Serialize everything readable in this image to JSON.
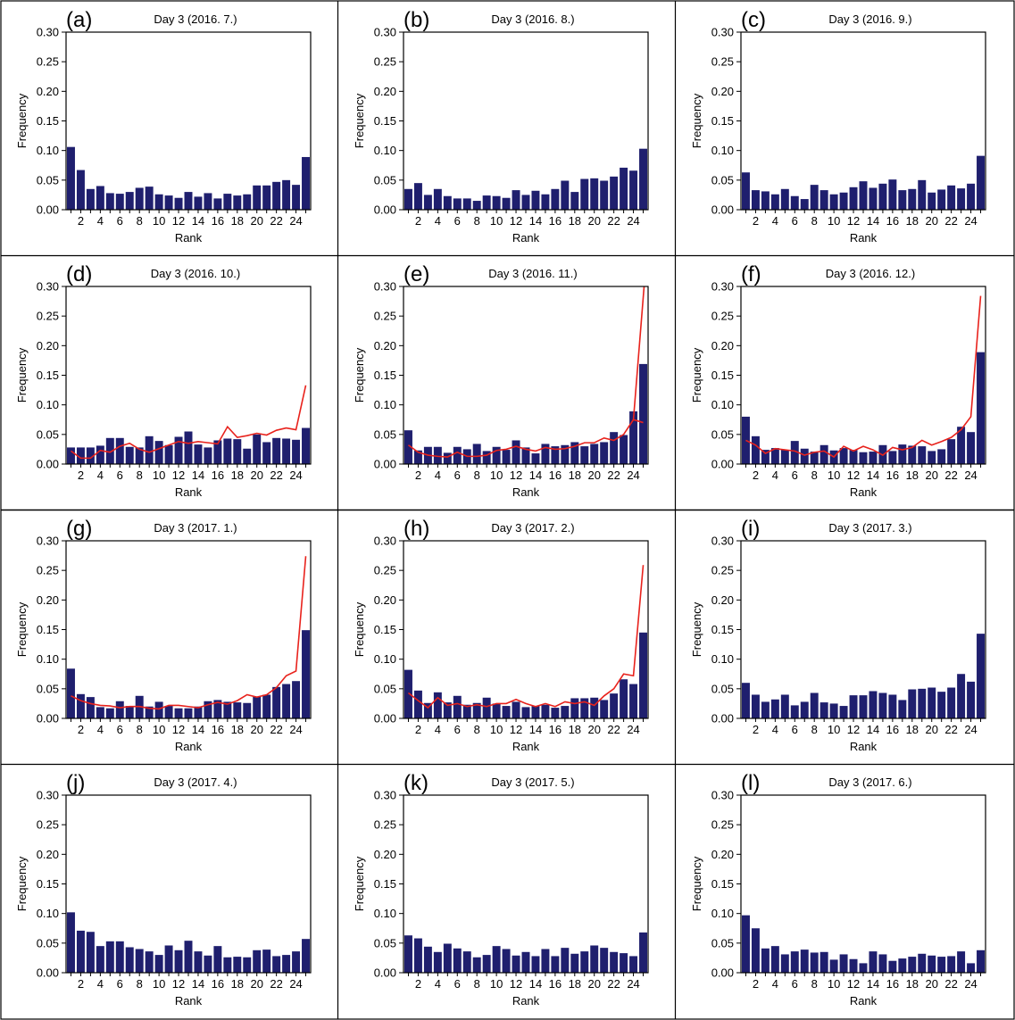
{
  "style": {
    "bar_color": "#1f1f6e",
    "line_color": "#e8221c",
    "frame_color": "#000000"
  },
  "axes": {
    "ylabel": "Frequency",
    "xlabel": "Rank",
    "ylim": [
      0,
      0.3
    ],
    "yticks": [
      "0.00",
      "0.05",
      "0.10",
      "0.15",
      "0.20",
      "0.25",
      "0.30"
    ],
    "xticks": [
      "2",
      "4",
      "6",
      "8",
      "10",
      "12",
      "14",
      "16",
      "18",
      "20",
      "22",
      "24"
    ]
  },
  "chart_data": [
    {
      "type": "bar",
      "letter": "(a)",
      "title": "Day 3 (2016. 7.)",
      "x": [
        1,
        2,
        3,
        4,
        5,
        6,
        7,
        8,
        9,
        10,
        11,
        12,
        13,
        14,
        15,
        16,
        17,
        18,
        19,
        20,
        21,
        22,
        23,
        24,
        25
      ],
      "values": [
        0.106,
        0.067,
        0.035,
        0.04,
        0.028,
        0.027,
        0.03,
        0.037,
        0.039,
        0.026,
        0.024,
        0.02,
        0.03,
        0.022,
        0.028,
        0.019,
        0.027,
        0.024,
        0.026,
        0.041,
        0.041,
        0.047,
        0.05,
        0.042,
        0.089
      ],
      "line": null,
      "xlabel": "Rank",
      "ylabel": "Frequency",
      "ylim": [
        0,
        0.3
      ]
    },
    {
      "type": "bar",
      "letter": "(b)",
      "title": "Day 3 (2016. 8.)",
      "x": [
        1,
        2,
        3,
        4,
        5,
        6,
        7,
        8,
        9,
        10,
        11,
        12,
        13,
        14,
        15,
        16,
        17,
        18,
        19,
        20,
        21,
        22,
        23,
        24,
        25
      ],
      "values": [
        0.035,
        0.045,
        0.025,
        0.035,
        0.023,
        0.019,
        0.019,
        0.015,
        0.024,
        0.023,
        0.02,
        0.033,
        0.025,
        0.032,
        0.026,
        0.035,
        0.049,
        0.03,
        0.052,
        0.053,
        0.049,
        0.056,
        0.071,
        0.066,
        0.103
      ],
      "line": null,
      "xlabel": "Rank",
      "ylabel": "Frequency",
      "ylim": [
        0,
        0.3
      ]
    },
    {
      "type": "bar",
      "letter": "(c)",
      "title": "Day 3 (2016. 9.)",
      "x": [
        1,
        2,
        3,
        4,
        5,
        6,
        7,
        8,
        9,
        10,
        11,
        12,
        13,
        14,
        15,
        16,
        17,
        18,
        19,
        20,
        21,
        22,
        23,
        24,
        25
      ],
      "values": [
        0.063,
        0.033,
        0.031,
        0.026,
        0.035,
        0.023,
        0.018,
        0.042,
        0.033,
        0.026,
        0.029,
        0.038,
        0.048,
        0.037,
        0.044,
        0.051,
        0.033,
        0.035,
        0.05,
        0.029,
        0.034,
        0.041,
        0.036,
        0.044,
        0.091
      ],
      "line": null,
      "xlabel": "Rank",
      "ylabel": "Frequency",
      "ylim": [
        0,
        0.3
      ]
    },
    {
      "type": "bar",
      "letter": "(d)",
      "title": "Day 3 (2016. 10.)",
      "x": [
        1,
        2,
        3,
        4,
        5,
        6,
        7,
        8,
        9,
        10,
        11,
        12,
        13,
        14,
        15,
        16,
        17,
        18,
        19,
        20,
        21,
        22,
        23,
        24,
        25
      ],
      "values": [
        0.028,
        0.028,
        0.028,
        0.031,
        0.044,
        0.044,
        0.029,
        0.028,
        0.047,
        0.039,
        0.032,
        0.046,
        0.055,
        0.033,
        0.028,
        0.04,
        0.043,
        0.042,
        0.026,
        0.05,
        0.037,
        0.044,
        0.043,
        0.041,
        0.061
      ],
      "line": [
        0.022,
        0.01,
        0.01,
        0.023,
        0.02,
        0.03,
        0.035,
        0.025,
        0.02,
        0.026,
        0.032,
        0.038,
        0.035,
        0.038,
        0.036,
        0.034,
        0.063,
        0.045,
        0.048,
        0.052,
        0.049,
        0.057,
        0.061,
        0.058,
        0.133
      ],
      "xlabel": "Rank",
      "ylabel": "Frequency",
      "ylim": [
        0,
        0.3
      ]
    },
    {
      "type": "bar",
      "letter": "(e)",
      "title": "Day 3 (2016. 11.)",
      "x": [
        1,
        2,
        3,
        4,
        5,
        6,
        7,
        8,
        9,
        10,
        11,
        12,
        13,
        14,
        15,
        16,
        17,
        18,
        19,
        20,
        21,
        22,
        23,
        24,
        25
      ],
      "values": [
        0.057,
        0.023,
        0.029,
        0.029,
        0.019,
        0.029,
        0.025,
        0.034,
        0.022,
        0.029,
        0.024,
        0.04,
        0.028,
        0.018,
        0.034,
        0.03,
        0.032,
        0.037,
        0.03,
        0.034,
        0.037,
        0.054,
        0.049,
        0.089,
        0.169
      ],
      "line": [
        0.032,
        0.02,
        0.015,
        0.013,
        0.012,
        0.02,
        0.013,
        0.013,
        0.015,
        0.023,
        0.025,
        0.03,
        0.025,
        0.022,
        0.028,
        0.025,
        0.026,
        0.03,
        0.036,
        0.036,
        0.044,
        0.04,
        0.05,
        0.075,
        0.07
      ],
      "line_tail": [
        0.075,
        0.3
      ],
      "xlabel": "Rank",
      "ylabel": "Frequency",
      "ylim": [
        0,
        0.3
      ]
    },
    {
      "type": "bar",
      "letter": "(f)",
      "title": "Day 3 (2016. 12.)",
      "x": [
        1,
        2,
        3,
        4,
        5,
        6,
        7,
        8,
        9,
        10,
        11,
        12,
        13,
        14,
        15,
        16,
        17,
        18,
        19,
        20,
        21,
        22,
        23,
        24,
        25
      ],
      "values": [
        0.08,
        0.047,
        0.024,
        0.027,
        0.024,
        0.039,
        0.026,
        0.021,
        0.032,
        0.023,
        0.027,
        0.024,
        0.02,
        0.021,
        0.032,
        0.022,
        0.033,
        0.031,
        0.03,
        0.022,
        0.025,
        0.042,
        0.063,
        0.054,
        0.189
      ],
      "line": [
        0.04,
        0.032,
        0.018,
        0.026,
        0.024,
        0.022,
        0.015,
        0.02,
        0.022,
        0.012,
        0.03,
        0.022,
        0.03,
        0.024,
        0.015,
        0.028,
        0.024,
        0.028,
        0.04,
        0.032,
        0.038,
        0.045,
        0.058,
        0.08,
        0.284
      ],
      "xlabel": "Rank",
      "ylabel": "Frequency",
      "ylim": [
        0,
        0.3
      ]
    },
    {
      "type": "bar",
      "letter": "(g)",
      "title": "Day 3 (2017. 1.)",
      "x": [
        1,
        2,
        3,
        4,
        5,
        6,
        7,
        8,
        9,
        10,
        11,
        12,
        13,
        14,
        15,
        16,
        17,
        18,
        19,
        20,
        21,
        22,
        23,
        24,
        25
      ],
      "values": [
        0.084,
        0.041,
        0.036,
        0.019,
        0.017,
        0.029,
        0.021,
        0.038,
        0.02,
        0.028,
        0.021,
        0.017,
        0.017,
        0.02,
        0.029,
        0.031,
        0.028,
        0.027,
        0.026,
        0.037,
        0.04,
        0.053,
        0.058,
        0.063,
        0.149
      ],
      "line": [
        0.038,
        0.03,
        0.025,
        0.022,
        0.021,
        0.018,
        0.02,
        0.02,
        0.017,
        0.016,
        0.022,
        0.022,
        0.02,
        0.018,
        0.023,
        0.027,
        0.024,
        0.03,
        0.04,
        0.036,
        0.04,
        0.052,
        0.072,
        0.08,
        0.274
      ],
      "xlabel": "Rank",
      "ylabel": "Frequency",
      "ylim": [
        0,
        0.3
      ]
    },
    {
      "type": "bar",
      "letter": "(h)",
      "title": "Day 3 (2017. 2.)",
      "x": [
        1,
        2,
        3,
        4,
        5,
        6,
        7,
        8,
        9,
        10,
        11,
        12,
        13,
        14,
        15,
        16,
        17,
        18,
        19,
        20,
        21,
        22,
        23,
        24,
        25
      ],
      "values": [
        0.082,
        0.047,
        0.026,
        0.044,
        0.027,
        0.038,
        0.023,
        0.026,
        0.035,
        0.025,
        0.021,
        0.028,
        0.019,
        0.021,
        0.023,
        0.018,
        0.021,
        0.034,
        0.034,
        0.035,
        0.031,
        0.042,
        0.066,
        0.058,
        0.145
      ],
      "line": [
        0.043,
        0.03,
        0.018,
        0.035,
        0.022,
        0.025,
        0.02,
        0.023,
        0.02,
        0.025,
        0.025,
        0.032,
        0.025,
        0.02,
        0.025,
        0.02,
        0.028,
        0.025,
        0.028,
        0.022,
        0.038,
        0.05,
        0.075,
        0.072,
        0.259
      ],
      "xlabel": "Rank",
      "ylabel": "Frequency",
      "ylim": [
        0,
        0.3
      ]
    },
    {
      "type": "bar",
      "letter": "(i)",
      "title": "Day 3 (2017. 3.)",
      "x": [
        1,
        2,
        3,
        4,
        5,
        6,
        7,
        8,
        9,
        10,
        11,
        12,
        13,
        14,
        15,
        16,
        17,
        18,
        19,
        20,
        21,
        22,
        23,
        24,
        25
      ],
      "values": [
        0.06,
        0.04,
        0.028,
        0.032,
        0.04,
        0.022,
        0.028,
        0.043,
        0.027,
        0.025,
        0.021,
        0.039,
        0.039,
        0.046,
        0.043,
        0.04,
        0.031,
        0.049,
        0.05,
        0.052,
        0.045,
        0.052,
        0.075,
        0.062,
        0.143
      ],
      "line": null,
      "xlabel": "Rank",
      "ylabel": "Frequency",
      "ylim": [
        0,
        0.3
      ]
    },
    {
      "type": "bar",
      "letter": "(j)",
      "title": "Day 3 (2017. 4.)",
      "x": [
        1,
        2,
        3,
        4,
        5,
        6,
        7,
        8,
        9,
        10,
        11,
        12,
        13,
        14,
        15,
        16,
        17,
        18,
        19,
        20,
        21,
        22,
        23,
        24,
        25
      ],
      "values": [
        0.102,
        0.071,
        0.069,
        0.045,
        0.053,
        0.053,
        0.043,
        0.04,
        0.036,
        0.03,
        0.046,
        0.038,
        0.054,
        0.036,
        0.029,
        0.045,
        0.026,
        0.027,
        0.026,
        0.038,
        0.039,
        0.028,
        0.03,
        0.036,
        0.057
      ],
      "line": null,
      "xlabel": "Rank",
      "ylabel": "Frequency",
      "ylim": [
        0,
        0.3
      ]
    },
    {
      "type": "bar",
      "letter": "(k)",
      "title": "Day 3 (2017. 5.)",
      "x": [
        1,
        2,
        3,
        4,
        5,
        6,
        7,
        8,
        9,
        10,
        11,
        12,
        13,
        14,
        15,
        16,
        17,
        18,
        19,
        20,
        21,
        22,
        23,
        24,
        25
      ],
      "values": [
        0.063,
        0.058,
        0.044,
        0.035,
        0.049,
        0.041,
        0.036,
        0.026,
        0.03,
        0.045,
        0.04,
        0.029,
        0.035,
        0.028,
        0.04,
        0.028,
        0.042,
        0.032,
        0.036,
        0.046,
        0.042,
        0.035,
        0.033,
        0.028,
        0.068
      ],
      "line": null,
      "xlabel": "Rank",
      "ylabel": "Frequency",
      "ylim": [
        0,
        0.3
      ]
    },
    {
      "type": "bar",
      "letter": "(l)",
      "title": "Day 3 (2017. 6.)",
      "x": [
        1,
        2,
        3,
        4,
        5,
        6,
        7,
        8,
        9,
        10,
        11,
        12,
        13,
        14,
        15,
        16,
        17,
        18,
        19,
        20,
        21,
        22,
        23,
        24,
        25
      ],
      "values": [
        0.097,
        0.075,
        0.041,
        0.045,
        0.031,
        0.036,
        0.039,
        0.034,
        0.035,
        0.022,
        0.031,
        0.023,
        0.016,
        0.036,
        0.031,
        0.02,
        0.024,
        0.027,
        0.032,
        0.029,
        0.027,
        0.028,
        0.036,
        0.016,
        0.038
      ],
      "line": null,
      "xlabel": "Rank",
      "ylabel": "Frequency",
      "ylim": [
        0,
        0.3
      ]
    }
  ]
}
